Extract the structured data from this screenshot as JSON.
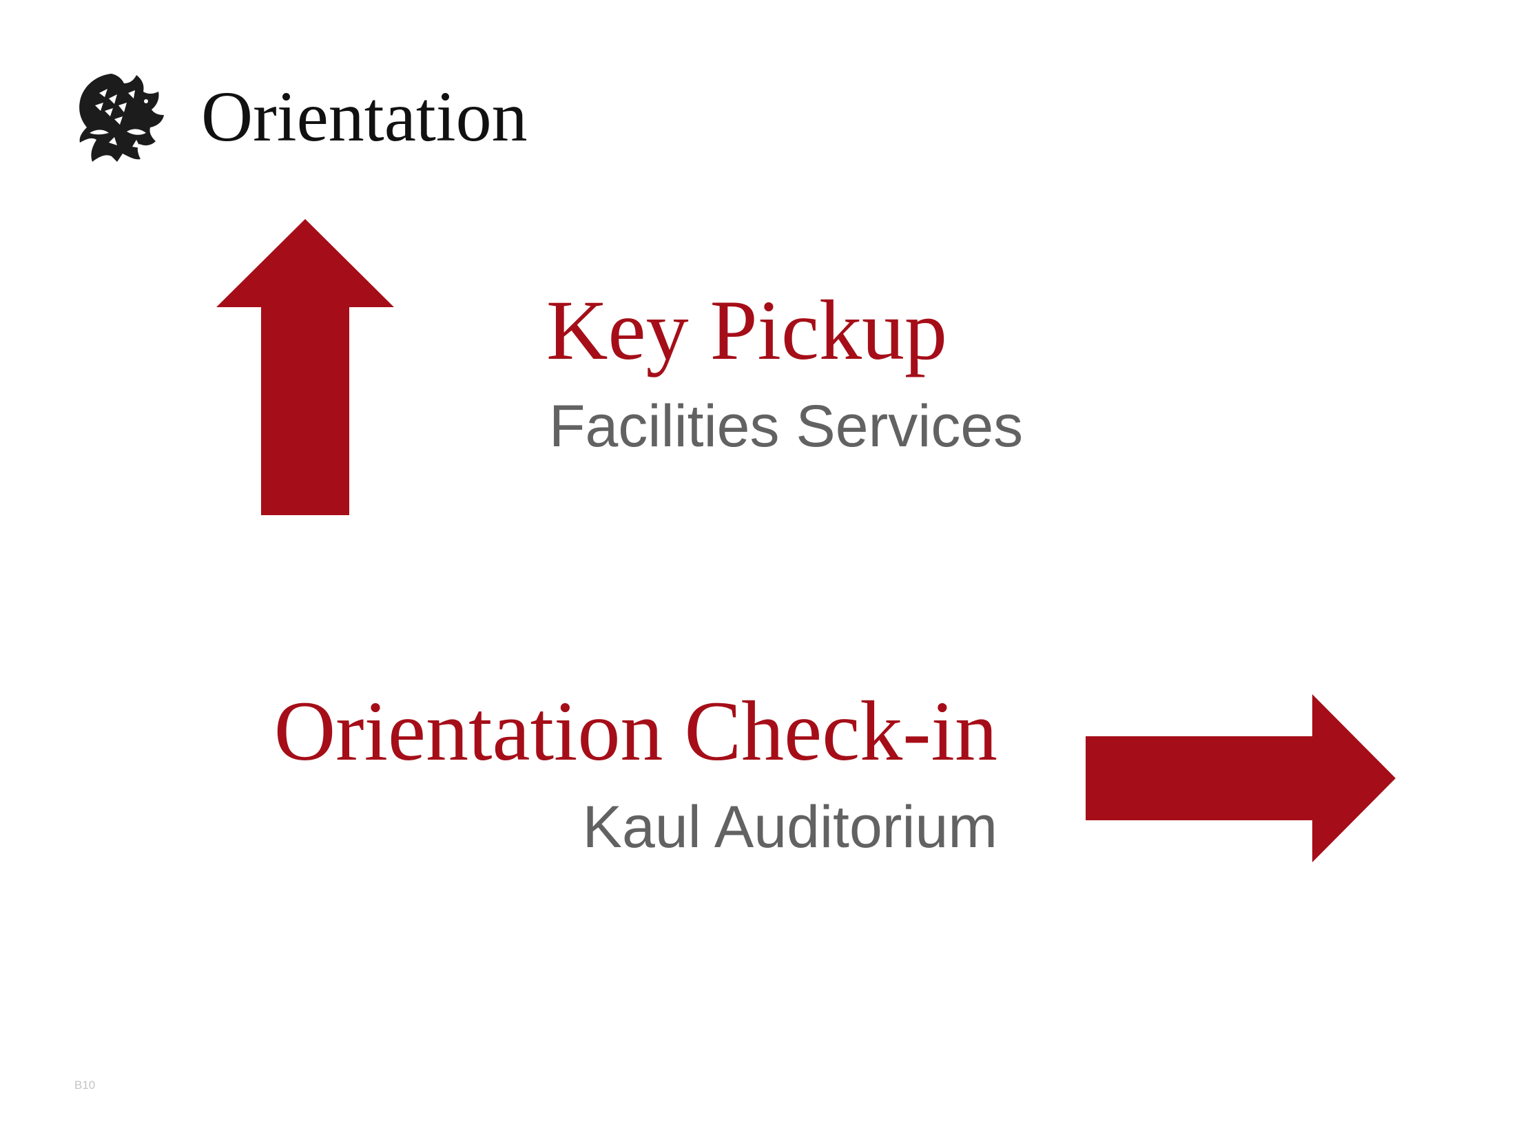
{
  "header": {
    "title": "Orientation",
    "logo_icon": "griffin-crest-icon"
  },
  "destinations": [
    {
      "title": "Key Pickup",
      "subtitle": "Facilities Services",
      "direction": "up",
      "arrow_icon": "arrow-up-icon"
    },
    {
      "title": "Orientation Check-in",
      "subtitle": "Kaul Auditorium",
      "direction": "right",
      "arrow_icon": "arrow-right-icon"
    }
  ],
  "footer": {
    "page_code": "B10"
  },
  "colors": {
    "accent": "#a50e18",
    "subtitle": "#626262",
    "title": "#111111",
    "footer": "#c4c4c4"
  }
}
